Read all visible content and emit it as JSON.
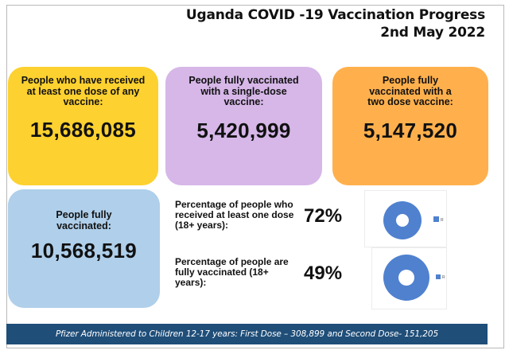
{
  "header": {
    "title_line1": "Uganda COVID -19 Vaccination Progress",
    "title_line2": "2nd May 2022"
  },
  "cards": [
    {
      "label": "People who have received at least one dose of any vaccine:",
      "value": "15,686,085",
      "color": "#fdd12f"
    },
    {
      "label": "People fully vaccinated with a single-dose vaccine:",
      "value": "5,420,999",
      "color": "#d6b7e8"
    },
    {
      "label": "People fully vaccinated with a two dose vaccine:",
      "value": "5,147,520",
      "color": "#ffb04c"
    },
    {
      "label": "People fully vaccinated:",
      "value": "10,568,519",
      "color": "#afcfea"
    }
  ],
  "percentages": [
    {
      "label": "Percentage of people who received at least one dose (18+ years):",
      "value": "72%"
    },
    {
      "label": "Percentage of people are fully vaccinated (18+ years):",
      "value": "49%"
    }
  ],
  "chart_data": [
    {
      "type": "pie",
      "style": "donut",
      "title": "",
      "categories": [
        "R"
      ],
      "values": [
        100
      ],
      "colors": [
        "#4f81cf"
      ],
      "legend": [
        "R"
      ],
      "legend_position": "right"
    },
    {
      "type": "pie",
      "style": "donut",
      "title": "",
      "categories": [
        "R"
      ],
      "values": [
        100
      ],
      "colors": [
        "#4f81cf"
      ],
      "legend": [
        "R"
      ],
      "legend_position": "right"
    }
  ],
  "footer": {
    "text": "Pfizer Administered to Children 12-17 years:  First Dose – 308,899 and Second Dose- 151,205",
    "color": "#1f4e79"
  }
}
